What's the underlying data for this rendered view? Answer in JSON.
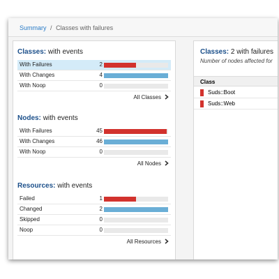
{
  "breadcrumb": {
    "link": "Summary",
    "separator": "/",
    "current": "Classes with failures"
  },
  "sections": [
    {
      "title_bold": "Classes:",
      "title_rest": "with events",
      "link": "All Classes",
      "rows": [
        {
          "label": "With Failures",
          "value": 2
        },
        {
          "label": "With Changes",
          "value": 4
        },
        {
          "label": "With Noop",
          "value": 0
        }
      ]
    },
    {
      "title_bold": "Nodes:",
      "title_rest": "with events",
      "link": "All Nodes",
      "rows": [
        {
          "label": "With Failures",
          "value": 45
        },
        {
          "label": "With Changes",
          "value": 46
        },
        {
          "label": "With Noop",
          "value": 0
        }
      ]
    },
    {
      "title_bold": "Resources:",
      "title_rest": "with events",
      "link": "All Resources",
      "rows": [
        {
          "label": "Failed",
          "value": 1
        },
        {
          "label": "Changed",
          "value": 2
        },
        {
          "label": "Skipped",
          "value": 0
        },
        {
          "label": "Noop",
          "value": 0
        }
      ]
    }
  ],
  "detail": {
    "title_bold": "Classes:",
    "title_rest": "2 with failures",
    "subtitle": "Number of nodes affected for",
    "header": "Class",
    "rows": [
      "Suds::Boot",
      "Suds::Web"
    ]
  }
}
